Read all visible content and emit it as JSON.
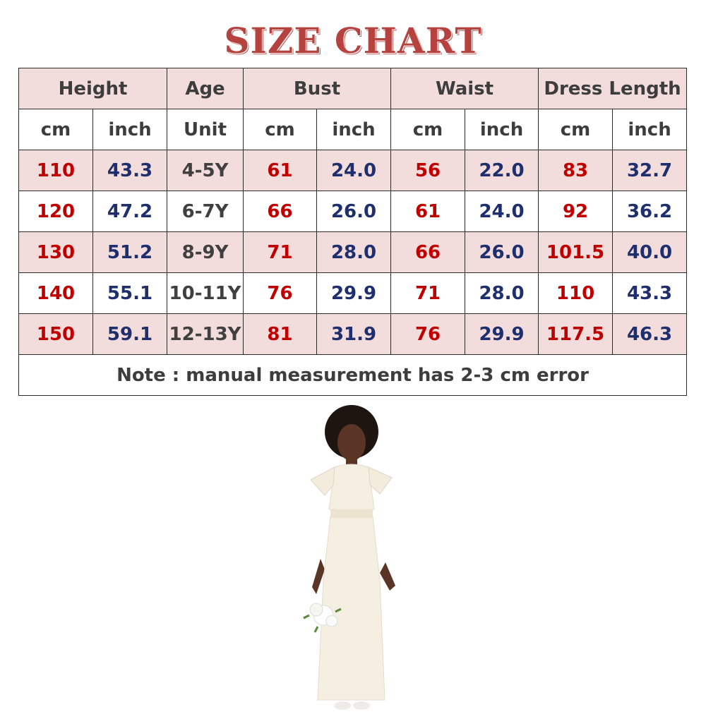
{
  "title": "SIZE CHART",
  "colors": {
    "title": "#b5423f",
    "cm": "#c00000",
    "inch": "#1f2f6e",
    "age": "#404040",
    "row_highlight": "#f2dcdc"
  },
  "table": {
    "groups": [
      "Height",
      "Age",
      "Bust",
      "Waist",
      "Dress Length"
    ],
    "subheaders": [
      "cm",
      "inch",
      "Unit",
      "cm",
      "inch",
      "cm",
      "inch",
      "cm",
      "inch"
    ],
    "rows": [
      [
        "110",
        "43.3",
        "4-5Y",
        "61",
        "24.0",
        "56",
        "22.0",
        "83",
        "32.7"
      ],
      [
        "120",
        "47.2",
        "6-7Y",
        "66",
        "26.0",
        "61",
        "24.0",
        "92",
        "36.2"
      ],
      [
        "130",
        "51.2",
        "8-9Y",
        "71",
        "28.0",
        "66",
        "26.0",
        "101.5",
        "40.0"
      ],
      [
        "140",
        "55.1",
        "10-11Y",
        "76",
        "29.9",
        "71",
        "28.0",
        "110",
        "43.3"
      ],
      [
        "150",
        "59.1",
        "12-13Y",
        "81",
        "31.9",
        "76",
        "29.9",
        "117.5",
        "46.3"
      ]
    ],
    "note": "Note : manual measurement has 2-3 cm error"
  },
  "photo": {
    "subject": "girl in ivory flower girl dress holding bouquet"
  }
}
